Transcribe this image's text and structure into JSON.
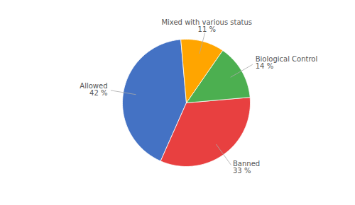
{
  "chart_data": {
    "type": "pie",
    "categories": [
      "Allowed",
      "Banned",
      "Biological Control",
      "Mixed with various status"
    ],
    "values": [
      42,
      33,
      14,
      11
    ],
    "value_labels": [
      "42 %",
      "33 %",
      "14 %",
      "11 %"
    ],
    "colors": [
      "#4472C4",
      "#E84040",
      "#4CAF50",
      "#FFA500"
    ]
  }
}
